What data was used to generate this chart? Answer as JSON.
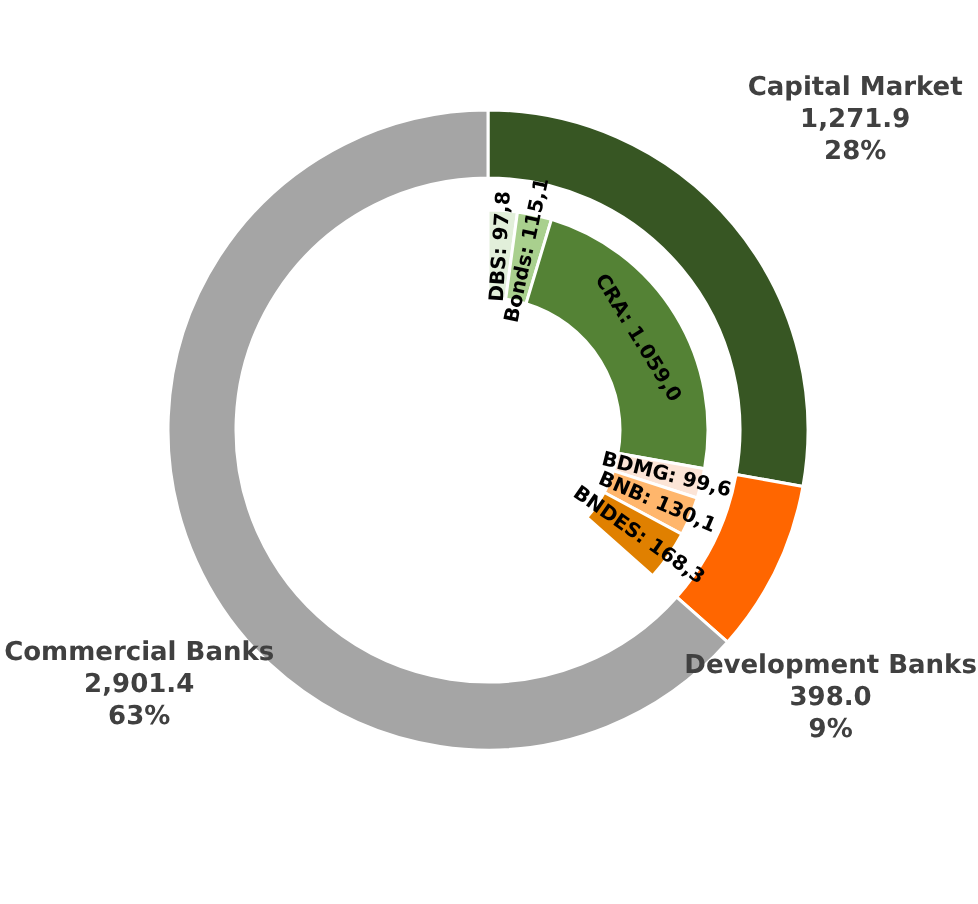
{
  "chart_data": [
    {
      "type": "donut",
      "categories": [
        "Capital Market",
        "Development Banks",
        "Commercial Banks"
      ],
      "values": [
        1271.9,
        398.0,
        2901.4
      ],
      "colors": [
        "#375623",
        "#ff6600",
        "#a5a5a5"
      ],
      "value_labels": [
        "1,271.9\n28%",
        "398.0\n9%",
        "2,901.4\n63%"
      ]
    },
    {
      "type": "donut",
      "categories": [
        "DBS",
        "Bonds",
        "CRA",
        "BDMG",
        "BNB",
        "BNDES"
      ],
      "values": [
        97.8,
        115.1,
        1059.0,
        99.6,
        130.1,
        168.3
      ],
      "colors": [
        "#e2efda",
        "#a9d08e",
        "#548235",
        "#fce4d6",
        "#ffb66c",
        "#e08000"
      ],
      "value_labels": [
        "97,8",
        "115,1",
        "1.059,0",
        "99,6",
        "130,1",
        "168,3"
      ]
    }
  ]
}
